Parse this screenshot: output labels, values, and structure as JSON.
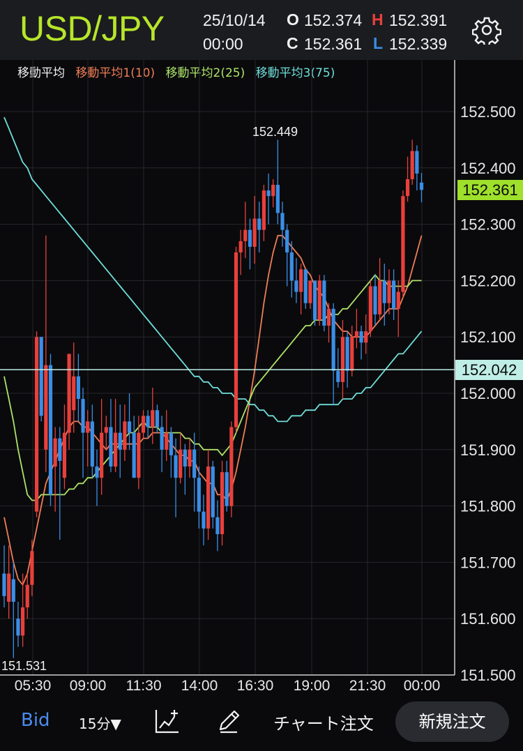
{
  "header": {
    "symbol": "USD/JPY",
    "date": "25/10/14",
    "time": "00:00",
    "open_key": "O",
    "open": "152.374",
    "high_key": "H",
    "high": "152.391",
    "close_key": "C",
    "close": "152.361",
    "low_key": "L",
    "low": "152.339"
  },
  "legend": {
    "title": "移動平均",
    "ma1": "移動平均1(10)",
    "ma2": "移動平均2(25)",
    "ma3": "移動平均3(75)"
  },
  "colors": {
    "up": "#e8403c",
    "down": "#3a8ee6",
    "ma1": "#f07e57",
    "ma2": "#aee36a",
    "ma3": "#6fded9",
    "symbol": "#b6e62a",
    "bid": "#4a8cf0",
    "last_price_tag": "#9ee02b",
    "line_price_tag": "#bfeee6"
  },
  "chart": {
    "last_price_tag": "152.361",
    "line_price_tag": "152.042",
    "annot_high": "152.449",
    "annot_low": "151.531",
    "icons": [
      "settings-gear-icon",
      "indicator-chart-icon",
      "pencil-draw-icon"
    ]
  },
  "chart_data": {
    "type": "candlestick",
    "ylim": [
      151.5,
      152.55
    ],
    "y_ticks": [
      "152.500",
      "152.400",
      "152.300",
      "152.200",
      "152.100",
      "152.000",
      "151.900",
      "151.800",
      "151.700",
      "151.600",
      "151.500"
    ],
    "x_ticks": [
      "05:30",
      "09:00",
      "11:30",
      "14:00",
      "16:30",
      "19:00",
      "21:30",
      "00:00"
    ],
    "horizontal_line": 152.042,
    "candles": [
      [
        151.68,
        151.64,
        151.73,
        151.62
      ],
      [
        151.63,
        151.68,
        151.73,
        151.6
      ],
      [
        151.67,
        151.63,
        151.7,
        151.53
      ],
      [
        151.6,
        151.57,
        151.63,
        151.55
      ],
      [
        151.57,
        151.62,
        151.68,
        151.55
      ],
      [
        151.62,
        151.66,
        151.68,
        151.6
      ],
      [
        151.66,
        151.72,
        151.74,
        151.64
      ],
      [
        151.79,
        152.1,
        152.11,
        151.78
      ],
      [
        152.1,
        151.96,
        152.1,
        151.95
      ],
      [
        151.9,
        152.05,
        152.28,
        151.86
      ],
      [
        152.05,
        151.82,
        152.07,
        151.8
      ],
      [
        151.87,
        151.92,
        151.94,
        151.79
      ],
      [
        151.92,
        151.88,
        151.94,
        151.74
      ],
      [
        151.85,
        151.93,
        151.98,
        151.83
      ],
      [
        151.93,
        152.07,
        152.07,
        151.9
      ],
      [
        151.97,
        152.03,
        152.09,
        151.93
      ],
      [
        152.03,
        151.99,
        152.07,
        151.95
      ],
      [
        151.99,
        151.93,
        152.01,
        151.85
      ],
      [
        151.93,
        151.95,
        151.97,
        151.87
      ],
      [
        151.95,
        151.87,
        151.98,
        151.85
      ],
      [
        151.87,
        151.85,
        151.9,
        151.8
      ],
      [
        151.85,
        151.93,
        151.99,
        151.82
      ],
      [
        151.93,
        151.94,
        151.96,
        151.9
      ],
      [
        151.94,
        151.87,
        151.99,
        151.86
      ],
      [
        151.87,
        151.93,
        151.99,
        151.86
      ],
      [
        151.93,
        151.9,
        151.98,
        151.85
      ],
      [
        151.9,
        151.95,
        151.98,
        151.88
      ],
      [
        151.95,
        151.93,
        152.0,
        151.9
      ],
      [
        151.93,
        151.85,
        151.96,
        151.85
      ],
      [
        151.85,
        151.93,
        151.96,
        151.83
      ],
      [
        151.93,
        151.96,
        151.97,
        151.92
      ],
      [
        151.96,
        151.94,
        151.97,
        151.92
      ],
      [
        151.94,
        151.97,
        152.01,
        151.91
      ],
      [
        151.97,
        151.94,
        151.98,
        151.93
      ],
      [
        151.94,
        151.9,
        151.96,
        151.86
      ],
      [
        151.9,
        151.93,
        151.97,
        151.88
      ],
      [
        151.93,
        151.89,
        151.94,
        151.85
      ],
      [
        151.89,
        151.85,
        151.92,
        151.78
      ],
      [
        151.85,
        151.9,
        151.93,
        151.84
      ],
      [
        151.9,
        151.87,
        151.91,
        151.82
      ],
      [
        151.87,
        151.9,
        151.92,
        151.85
      ],
      [
        151.9,
        151.85,
        151.93,
        151.79
      ],
      [
        151.85,
        151.79,
        151.87,
        151.76
      ],
      [
        151.79,
        151.76,
        151.82,
        151.73
      ],
      [
        151.76,
        151.87,
        151.9,
        151.74
      ],
      [
        151.87,
        151.78,
        151.88,
        151.76
      ],
      [
        151.78,
        151.75,
        151.81,
        151.72
      ],
      [
        151.75,
        151.86,
        151.88,
        151.73
      ],
      [
        151.86,
        151.8,
        151.88,
        151.79
      ],
      [
        151.8,
        151.94,
        151.95,
        151.78
      ],
      [
        151.94,
        152.25,
        152.26,
        151.93
      ],
      [
        152.25,
        152.27,
        152.29,
        152.21
      ],
      [
        152.27,
        152.29,
        152.34,
        152.24
      ],
      [
        152.29,
        152.26,
        152.31,
        152.22
      ],
      [
        152.26,
        152.31,
        152.35,
        152.23
      ],
      [
        152.31,
        152.29,
        152.34,
        152.25
      ],
      [
        152.29,
        152.36,
        152.37,
        152.27
      ],
      [
        152.36,
        152.35,
        152.39,
        152.3
      ],
      [
        152.35,
        152.37,
        152.38,
        152.33
      ],
      [
        152.37,
        152.32,
        152.45,
        152.3
      ],
      [
        152.32,
        152.29,
        152.34,
        152.26
      ],
      [
        152.29,
        152.25,
        152.3,
        152.19
      ],
      [
        152.25,
        152.2,
        152.27,
        152.17
      ],
      [
        152.2,
        152.18,
        152.24,
        152.16
      ],
      [
        152.18,
        152.22,
        152.23,
        152.14
      ],
      [
        152.22,
        152.16,
        152.22,
        152.15
      ],
      [
        152.16,
        152.2,
        152.2,
        152.15
      ],
      [
        152.2,
        152.13,
        152.2,
        152.12
      ],
      [
        152.13,
        152.2,
        152.21,
        152.12
      ],
      [
        152.2,
        152.12,
        152.21,
        152.11
      ],
      [
        152.12,
        152.15,
        152.16,
        152.09
      ],
      [
        152.15,
        152.04,
        152.16,
        151.98
      ],
      [
        152.04,
        152.02,
        152.08,
        152.01
      ],
      [
        152.02,
        152.1,
        152.13,
        151.99
      ],
      [
        152.1,
        152.04,
        152.11,
        152.01
      ],
      [
        152.04,
        152.1,
        152.12,
        152.03
      ],
      [
        152.1,
        152.11,
        152.15,
        152.08
      ],
      [
        152.11,
        152.09,
        152.12,
        152.06
      ],
      [
        152.09,
        152.11,
        152.14,
        152.07
      ],
      [
        152.11,
        152.19,
        152.2,
        152.1
      ],
      [
        152.19,
        152.14,
        152.21,
        152.12
      ],
      [
        152.14,
        152.2,
        152.24,
        152.13
      ],
      [
        152.2,
        152.16,
        152.23,
        152.12
      ],
      [
        152.16,
        152.2,
        152.22,
        152.14
      ],
      [
        152.2,
        152.15,
        152.22,
        152.13
      ],
      [
        152.15,
        152.18,
        152.2,
        152.1
      ],
      [
        152.18,
        152.35,
        152.36,
        152.17
      ],
      [
        152.35,
        152.38,
        152.42,
        152.34
      ],
      [
        152.38,
        152.43,
        152.45,
        152.37
      ],
      [
        152.43,
        152.39,
        152.44,
        152.36
      ],
      [
        152.374,
        152.361,
        152.391,
        152.339
      ]
    ],
    "series": [
      {
        "name": "移動平均1(10)",
        "values": [
          151.78,
          151.74,
          151.7,
          151.67,
          151.66,
          151.68,
          151.72,
          151.76,
          151.8,
          151.84,
          151.86,
          151.88,
          151.9,
          151.92,
          151.94,
          151.95,
          151.95,
          151.94,
          151.94,
          151.93,
          151.92,
          151.91,
          151.9,
          151.91,
          151.91,
          151.91,
          151.91,
          151.91,
          151.91,
          151.91,
          151.92,
          151.92,
          151.93,
          151.93,
          151.93,
          151.92,
          151.91,
          151.9,
          151.89,
          151.89,
          151.88,
          151.88,
          151.86,
          151.85,
          151.84,
          151.84,
          151.82,
          151.82,
          151.81,
          151.83,
          151.86,
          151.9,
          151.94,
          151.99,
          152.04,
          152.1,
          152.16,
          152.21,
          152.25,
          152.28,
          152.28,
          152.27,
          152.26,
          152.25,
          152.24,
          152.22,
          152.21,
          152.19,
          152.18,
          152.17,
          152.15,
          152.13,
          152.12,
          152.11,
          152.11,
          152.1,
          152.1,
          152.1,
          152.1,
          152.11,
          152.12,
          152.13,
          152.14,
          152.15,
          152.15,
          152.15,
          152.17,
          152.19,
          152.22,
          152.25,
          152.28
        ]
      },
      {
        "name": "移動平均2(25)",
        "values": [
          152.03,
          151.99,
          151.95,
          151.9,
          151.86,
          151.82,
          151.81,
          151.81,
          151.82,
          151.82,
          151.82,
          151.82,
          151.82,
          151.82,
          151.83,
          151.83,
          151.84,
          151.84,
          151.85,
          151.85,
          151.86,
          151.87,
          151.88,
          151.89,
          151.9,
          151.91,
          151.92,
          151.93,
          151.93,
          151.94,
          151.95,
          151.94,
          151.94,
          151.94,
          151.93,
          151.93,
          151.93,
          151.93,
          151.93,
          151.92,
          151.92,
          151.91,
          151.91,
          151.9,
          151.9,
          151.9,
          151.9,
          151.89,
          151.9,
          151.91,
          151.93,
          151.95,
          151.97,
          151.99,
          152.01,
          152.02,
          152.03,
          152.04,
          152.05,
          152.06,
          152.07,
          152.08,
          152.09,
          152.1,
          152.11,
          152.12,
          152.12,
          152.13,
          152.13,
          152.13,
          152.14,
          152.14,
          152.14,
          152.15,
          152.15,
          152.16,
          152.17,
          152.18,
          152.19,
          152.2,
          152.21,
          152.2,
          152.2,
          152.19,
          152.19,
          152.19,
          152.19,
          152.19,
          152.2,
          152.2,
          152.2
        ]
      },
      {
        "name": "移動平均3(75)",
        "values": [
          152.49,
          152.47,
          152.45,
          152.43,
          152.41,
          152.4,
          152.38,
          152.37,
          152.36,
          152.35,
          152.34,
          152.33,
          152.32,
          152.31,
          152.3,
          152.29,
          152.28,
          152.27,
          152.26,
          152.25,
          152.24,
          152.23,
          152.22,
          152.21,
          152.2,
          152.19,
          152.18,
          152.17,
          152.16,
          152.15,
          152.14,
          152.13,
          152.12,
          152.11,
          152.1,
          152.09,
          152.08,
          152.07,
          152.06,
          152.05,
          152.04,
          152.03,
          152.03,
          152.02,
          152.02,
          152.01,
          152.01,
          152.0,
          152.0,
          152.0,
          151.99,
          151.99,
          151.99,
          151.98,
          151.98,
          151.97,
          151.97,
          151.96,
          151.96,
          151.95,
          151.95,
          151.95,
          151.96,
          151.96,
          151.96,
          151.97,
          151.97,
          151.97,
          151.98,
          151.98,
          151.98,
          151.98,
          151.98,
          151.99,
          151.99,
          151.99,
          152.0,
          152.0,
          152.01,
          152.01,
          152.02,
          152.03,
          152.04,
          152.05,
          152.06,
          152.07,
          152.07,
          152.08,
          152.09,
          152.1,
          152.11
        ]
      }
    ]
  },
  "footer": {
    "bid": "Bid",
    "interval": "15分▼",
    "chart_order": "チャート注文",
    "new_order": "新規注文"
  }
}
